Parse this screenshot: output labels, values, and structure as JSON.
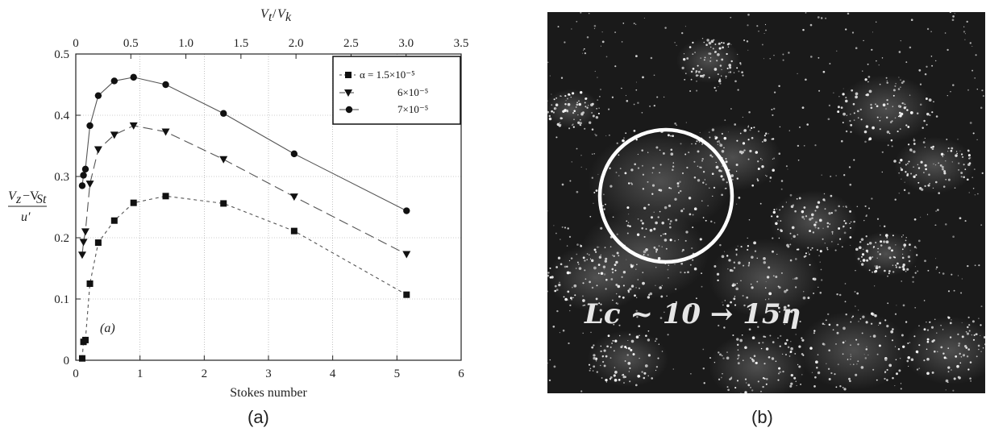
{
  "captions": {
    "a": "(a)",
    "b": "(b)"
  },
  "photo": {
    "label": "L_c ~ 10 → 15η",
    "label_display": "Lc ~ 10 → 15η"
  },
  "chart_data": {
    "type": "line",
    "xlabel": "Stokes number",
    "ylabel": "(Vz − VSt) / u′",
    "ylabel_num": "V_z − V_St",
    "ylabel_den": "u′",
    "top_xlabel": "V_t / V_k",
    "xlim": [
      0,
      6
    ],
    "ylim": [
      0,
      0.5
    ],
    "x_ticks": [
      "0",
      "1",
      "2",
      "3",
      "4",
      "5",
      "6"
    ],
    "y_ticks": [
      "0.1",
      "0.2",
      "0.3",
      "0.4",
      "0.5"
    ],
    "top_xlim": [
      0,
      3.5
    ],
    "top_x_ticks": [
      "0",
      "0.5",
      "1.0",
      "1.5",
      "2.0",
      "2.5",
      "3.0",
      "3.5"
    ],
    "annotation": "(a)",
    "grid": true,
    "legend_position": "top-right",
    "series": [
      {
        "name": "α = 1.5×10⁻⁵",
        "marker": "square",
        "dash": "short",
        "x": [
          0.1,
          0.12,
          0.15,
          0.22,
          0.35,
          0.6,
          0.9,
          1.4,
          2.3,
          3.4,
          5.15
        ],
        "y": [
          0.003,
          0.03,
          0.033,
          0.125,
          0.192,
          0.228,
          0.257,
          0.268,
          0.256,
          0.211,
          0.107
        ]
      },
      {
        "name": "6×10⁻⁵",
        "marker": "triangle-down",
        "dash": "long",
        "x": [
          0.1,
          0.12,
          0.15,
          0.22,
          0.35,
          0.6,
          0.9,
          1.4,
          2.3,
          3.4,
          5.15
        ],
        "y": [
          0.172,
          0.193,
          0.21,
          0.288,
          0.344,
          0.368,
          0.383,
          0.373,
          0.328,
          0.267,
          0.173
        ]
      },
      {
        "name": "7×10⁻⁵",
        "marker": "circle",
        "dash": "solid",
        "x": [
          0.1,
          0.12,
          0.15,
          0.22,
          0.35,
          0.6,
          0.9,
          1.4,
          2.3,
          3.4,
          5.15
        ],
        "y": [
          0.285,
          0.302,
          0.312,
          0.383,
          0.432,
          0.456,
          0.462,
          0.45,
          0.403,
          0.337,
          0.244
        ]
      }
    ]
  }
}
